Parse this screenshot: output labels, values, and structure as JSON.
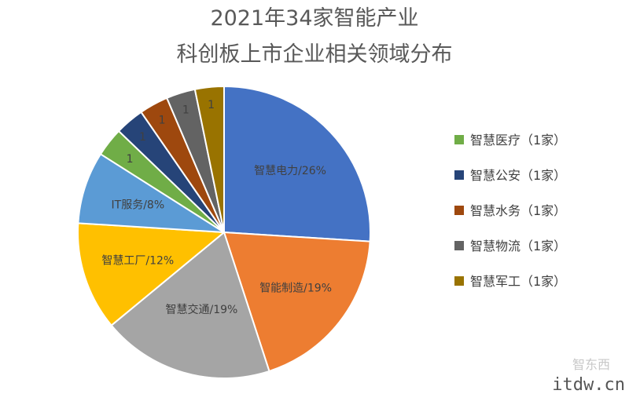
{
  "chart_data": {
    "type": "pie",
    "title": [
      "2021年34家智能产业",
      "科创板上市企业相关领域分布"
    ],
    "slices": [
      {
        "label": "智慧电力/26%",
        "value": 26,
        "color": "#4472C4"
      },
      {
        "label": "智能制造/19%",
        "value": 19,
        "color": "#ED7D31"
      },
      {
        "label": "智慧交通/19%",
        "value": 19,
        "color": "#A5A5A5"
      },
      {
        "label": "智慧工厂/12%",
        "value": 12,
        "color": "#FFC000"
      },
      {
        "label": "IT服务/8%",
        "value": 8,
        "color": "#5B9BD5"
      },
      {
        "label": "1",
        "value": 3.2,
        "color": "#70AD47"
      },
      {
        "label": "1",
        "value": 3.2,
        "color": "#264478"
      },
      {
        "label": "1",
        "value": 3.2,
        "color": "#9E480E"
      },
      {
        "label": "1",
        "value": 3.2,
        "color": "#636363"
      },
      {
        "label": "1",
        "value": 3.2,
        "color": "#997300"
      }
    ],
    "legend": [
      {
        "label": "智慧医疗（1家）",
        "color": "#70AD47"
      },
      {
        "label": "智慧公安（1家）",
        "color": "#264478"
      },
      {
        "label": "智慧水务（1家）",
        "color": "#9E480E"
      },
      {
        "label": "智慧物流（1家）",
        "color": "#636363"
      },
      {
        "label": "智慧军工（1家）",
        "color": "#997300"
      }
    ],
    "legend_position": "right"
  },
  "watermark": {
    "logo": "智东西",
    "site": "itdw.cn"
  }
}
